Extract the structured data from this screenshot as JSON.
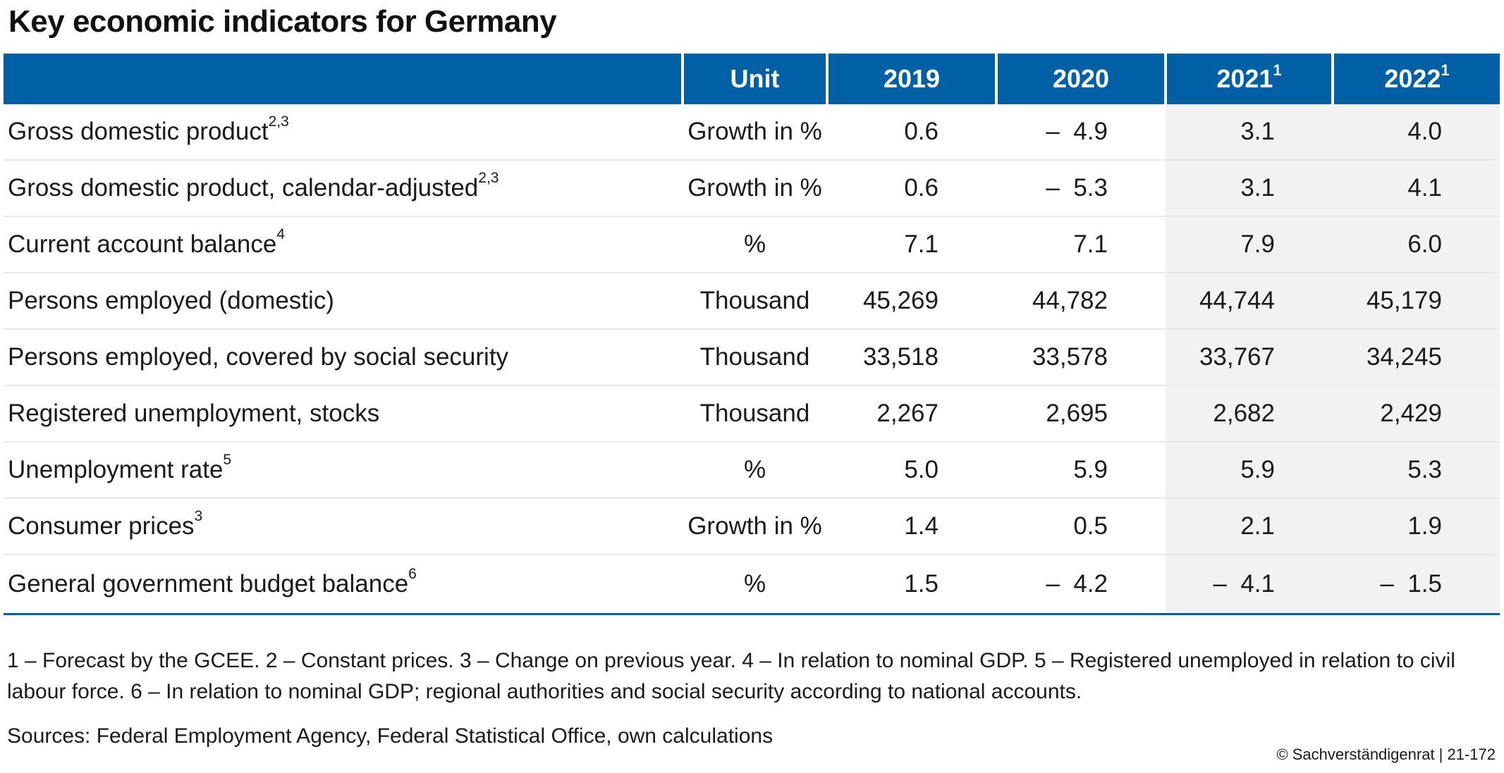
{
  "title": "Key economic indicators for Germany",
  "header": {
    "label": "",
    "unit": "Unit",
    "years": [
      {
        "year": "2019",
        "sup": ""
      },
      {
        "year": "2020",
        "sup": ""
      },
      {
        "year": "2021",
        "sup": "1"
      },
      {
        "year": "2022",
        "sup": "1"
      }
    ]
  },
  "rows": [
    {
      "label": "Gross domestic product",
      "sup": "2,3",
      "unit": "Growth in %",
      "values": [
        "0.6",
        "–  4.9",
        "3.1",
        "4.0"
      ]
    },
    {
      "label": "Gross domestic product, calendar-adjusted",
      "sup": "2,3",
      "unit": "Growth in %",
      "values": [
        "0.6",
        "–  5.3",
        "3.1",
        "4.1"
      ]
    },
    {
      "label": "Current account balance",
      "sup": "4",
      "unit": "%",
      "values": [
        "7.1",
        "7.1",
        "7.9",
        "6.0"
      ]
    },
    {
      "label": "Persons employed (domestic)",
      "sup": "",
      "unit": "Thousand",
      "values": [
        "45,269",
        "44,782",
        "44,744",
        "45,179"
      ]
    },
    {
      "label": "Persons employed, covered by social security",
      "sup": "",
      "unit": "Thousand",
      "values": [
        "33,518",
        "33,578",
        "33,767",
        "34,245"
      ]
    },
    {
      "label": "Registered unemployment, stocks",
      "sup": "",
      "unit": "Thousand",
      "values": [
        "2,267",
        "2,695",
        "2,682",
        "2,429"
      ]
    },
    {
      "label": "Unemployment rate",
      "sup": "5",
      "unit": "%",
      "values": [
        "5.0",
        "5.9",
        "5.9",
        "5.3"
      ]
    },
    {
      "label": "Consumer prices",
      "sup": "3",
      "unit": "Growth in %",
      "values": [
        "1.4",
        "0.5",
        "2.1",
        "1.9"
      ]
    },
    {
      "label": "General government budget balance",
      "sup": "6",
      "unit": "%",
      "values": [
        "1.5",
        "–  4.2",
        "–  4.1",
        "–  1.5"
      ]
    }
  ],
  "footnotes": "1 – Forecast by the GCEE.  2 – Constant prices.  3 – Change on previous year.  4 – In relation to nominal GDP.  5 – Registered unemployed in relation to civil labour force.  6 – In relation to nominal GDP; regional authorities and social security according to national accounts.",
  "sources": "Sources: Federal Employment Agency, Federal Statistical Office, own calculations",
  "copyright": "© Sachverständigenrat | 21-172",
  "colors": {
    "header_bg": "#0060a6",
    "forecast_shade": "#f2f2f2"
  }
}
